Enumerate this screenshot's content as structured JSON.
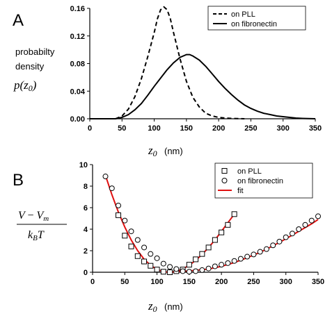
{
  "panels": {
    "a_letter": "A",
    "b_letter": "B"
  },
  "chart_data": [
    {
      "type": "line",
      "panel": "A",
      "ylabel_lines": [
        "probabilty",
        "density",
        "p(z0)"
      ],
      "xlabel": "z0 (nm)",
      "xlim": [
        0,
        350
      ],
      "ylim": [
        0,
        0.16
      ],
      "xticks": [
        0,
        50,
        100,
        150,
        200,
        250,
        300,
        350
      ],
      "yticks": [
        0.0,
        0.04,
        0.08,
        0.12,
        0.16
      ],
      "ytick_labels": [
        "0.00",
        "0.04",
        "0.08",
        "0.12",
        "0.16"
      ],
      "legend_position": "top-right",
      "grid": false,
      "series": [
        {
          "name": "on PLL",
          "style": "dashed",
          "x": [
            40,
            50,
            60,
            70,
            80,
            90,
            100,
            105,
            110,
            115,
            120,
            125,
            130,
            140,
            150,
            160,
            170,
            180,
            190,
            200,
            210,
            220,
            230,
            240
          ],
          "y": [
            0.0,
            0.004,
            0.014,
            0.032,
            0.058,
            0.09,
            0.125,
            0.145,
            0.158,
            0.162,
            0.158,
            0.145,
            0.125,
            0.087,
            0.054,
            0.031,
            0.017,
            0.008,
            0.004,
            0.002,
            0.001,
            0.0005,
            0.0002,
            0.0
          ]
        },
        {
          "name": "on fibronectin",
          "style": "solid",
          "x": [
            0,
            40,
            50,
            60,
            70,
            80,
            90,
            100,
            110,
            120,
            130,
            140,
            150,
            155,
            160,
            170,
            180,
            190,
            200,
            210,
            220,
            230,
            240,
            250,
            260,
            270,
            280,
            290,
            300,
            310,
            320,
            330,
            340,
            350
          ],
          "y": [
            0.0,
            0.0,
            0.002,
            0.006,
            0.013,
            0.022,
            0.034,
            0.047,
            0.059,
            0.071,
            0.081,
            0.089,
            0.093,
            0.093,
            0.091,
            0.085,
            0.076,
            0.065,
            0.054,
            0.044,
            0.035,
            0.027,
            0.02,
            0.015,
            0.011,
            0.008,
            0.006,
            0.004,
            0.003,
            0.002,
            0.001,
            0.0005,
            0.0002,
            0.0
          ]
        }
      ]
    },
    {
      "type": "scatter",
      "panel": "B",
      "xlabel": "z0 (nm)",
      "xlim": [
        0,
        350
      ],
      "ylim": [
        0,
        10
      ],
      "xticks": [
        0,
        50,
        100,
        150,
        200,
        250,
        300,
        350
      ],
      "yticks": [
        0,
        2,
        4,
        6,
        8,
        10
      ],
      "legend_position": "top-right",
      "grid": false,
      "series": [
        {
          "name": "on PLL",
          "marker": "square",
          "x": [
            40,
            50,
            60,
            70,
            80,
            90,
            100,
            110,
            120,
            130,
            140,
            150,
            160,
            170,
            180,
            190,
            200,
            210,
            220
          ],
          "y": [
            5.3,
            3.4,
            2.4,
            1.5,
            1.0,
            0.6,
            0.25,
            0.05,
            0.0,
            0.1,
            0.25,
            0.7,
            1.2,
            1.7,
            2.3,
            3.0,
            3.7,
            4.4,
            5.4
          ]
        },
        {
          "name": "on fibronectin",
          "marker": "circle",
          "x": [
            20,
            30,
            40,
            50,
            60,
            70,
            80,
            90,
            100,
            110,
            120,
            130,
            140,
            150,
            160,
            170,
            180,
            190,
            200,
            210,
            220,
            230,
            240,
            250,
            260,
            270,
            280,
            290,
            300,
            310,
            320,
            330,
            340,
            350
          ],
          "y": [
            8.9,
            7.8,
            6.2,
            4.8,
            3.8,
            3.0,
            2.3,
            1.7,
            1.3,
            0.8,
            0.5,
            0.3,
            0.1,
            0.05,
            0.1,
            0.2,
            0.35,
            0.55,
            0.7,
            0.85,
            1.05,
            1.25,
            1.45,
            1.65,
            1.9,
            2.15,
            2.5,
            2.85,
            3.25,
            3.6,
            4.0,
            4.4,
            4.8,
            5.2
          ]
        },
        {
          "name": "fit",
          "style": "line",
          "color": "#e01010",
          "x": [
            20,
            30,
            40,
            50,
            60,
            70,
            80,
            90,
            100,
            110,
            120,
            130,
            140,
            150,
            160,
            170,
            180,
            190,
            200,
            210,
            220
          ],
          "y": [
            9.0,
            7.2,
            5.6,
            4.2,
            3.0,
            2.0,
            1.2,
            0.65,
            0.25,
            0.05,
            0.0,
            0.08,
            0.3,
            0.65,
            1.1,
            1.65,
            2.3,
            3.0,
            3.8,
            4.6,
            5.4
          ],
          "x2": [
            120,
            140,
            160,
            180,
            200,
            220,
            240,
            260,
            280,
            300,
            320,
            340,
            350
          ],
          "y2": [
            0.0,
            0.08,
            0.18,
            0.3,
            0.55,
            0.9,
            1.35,
            1.85,
            2.45,
            3.1,
            3.8,
            4.5,
            4.9
          ]
        }
      ]
    }
  ],
  "colors": {
    "axis": "#000000",
    "fit": "#e01010"
  }
}
